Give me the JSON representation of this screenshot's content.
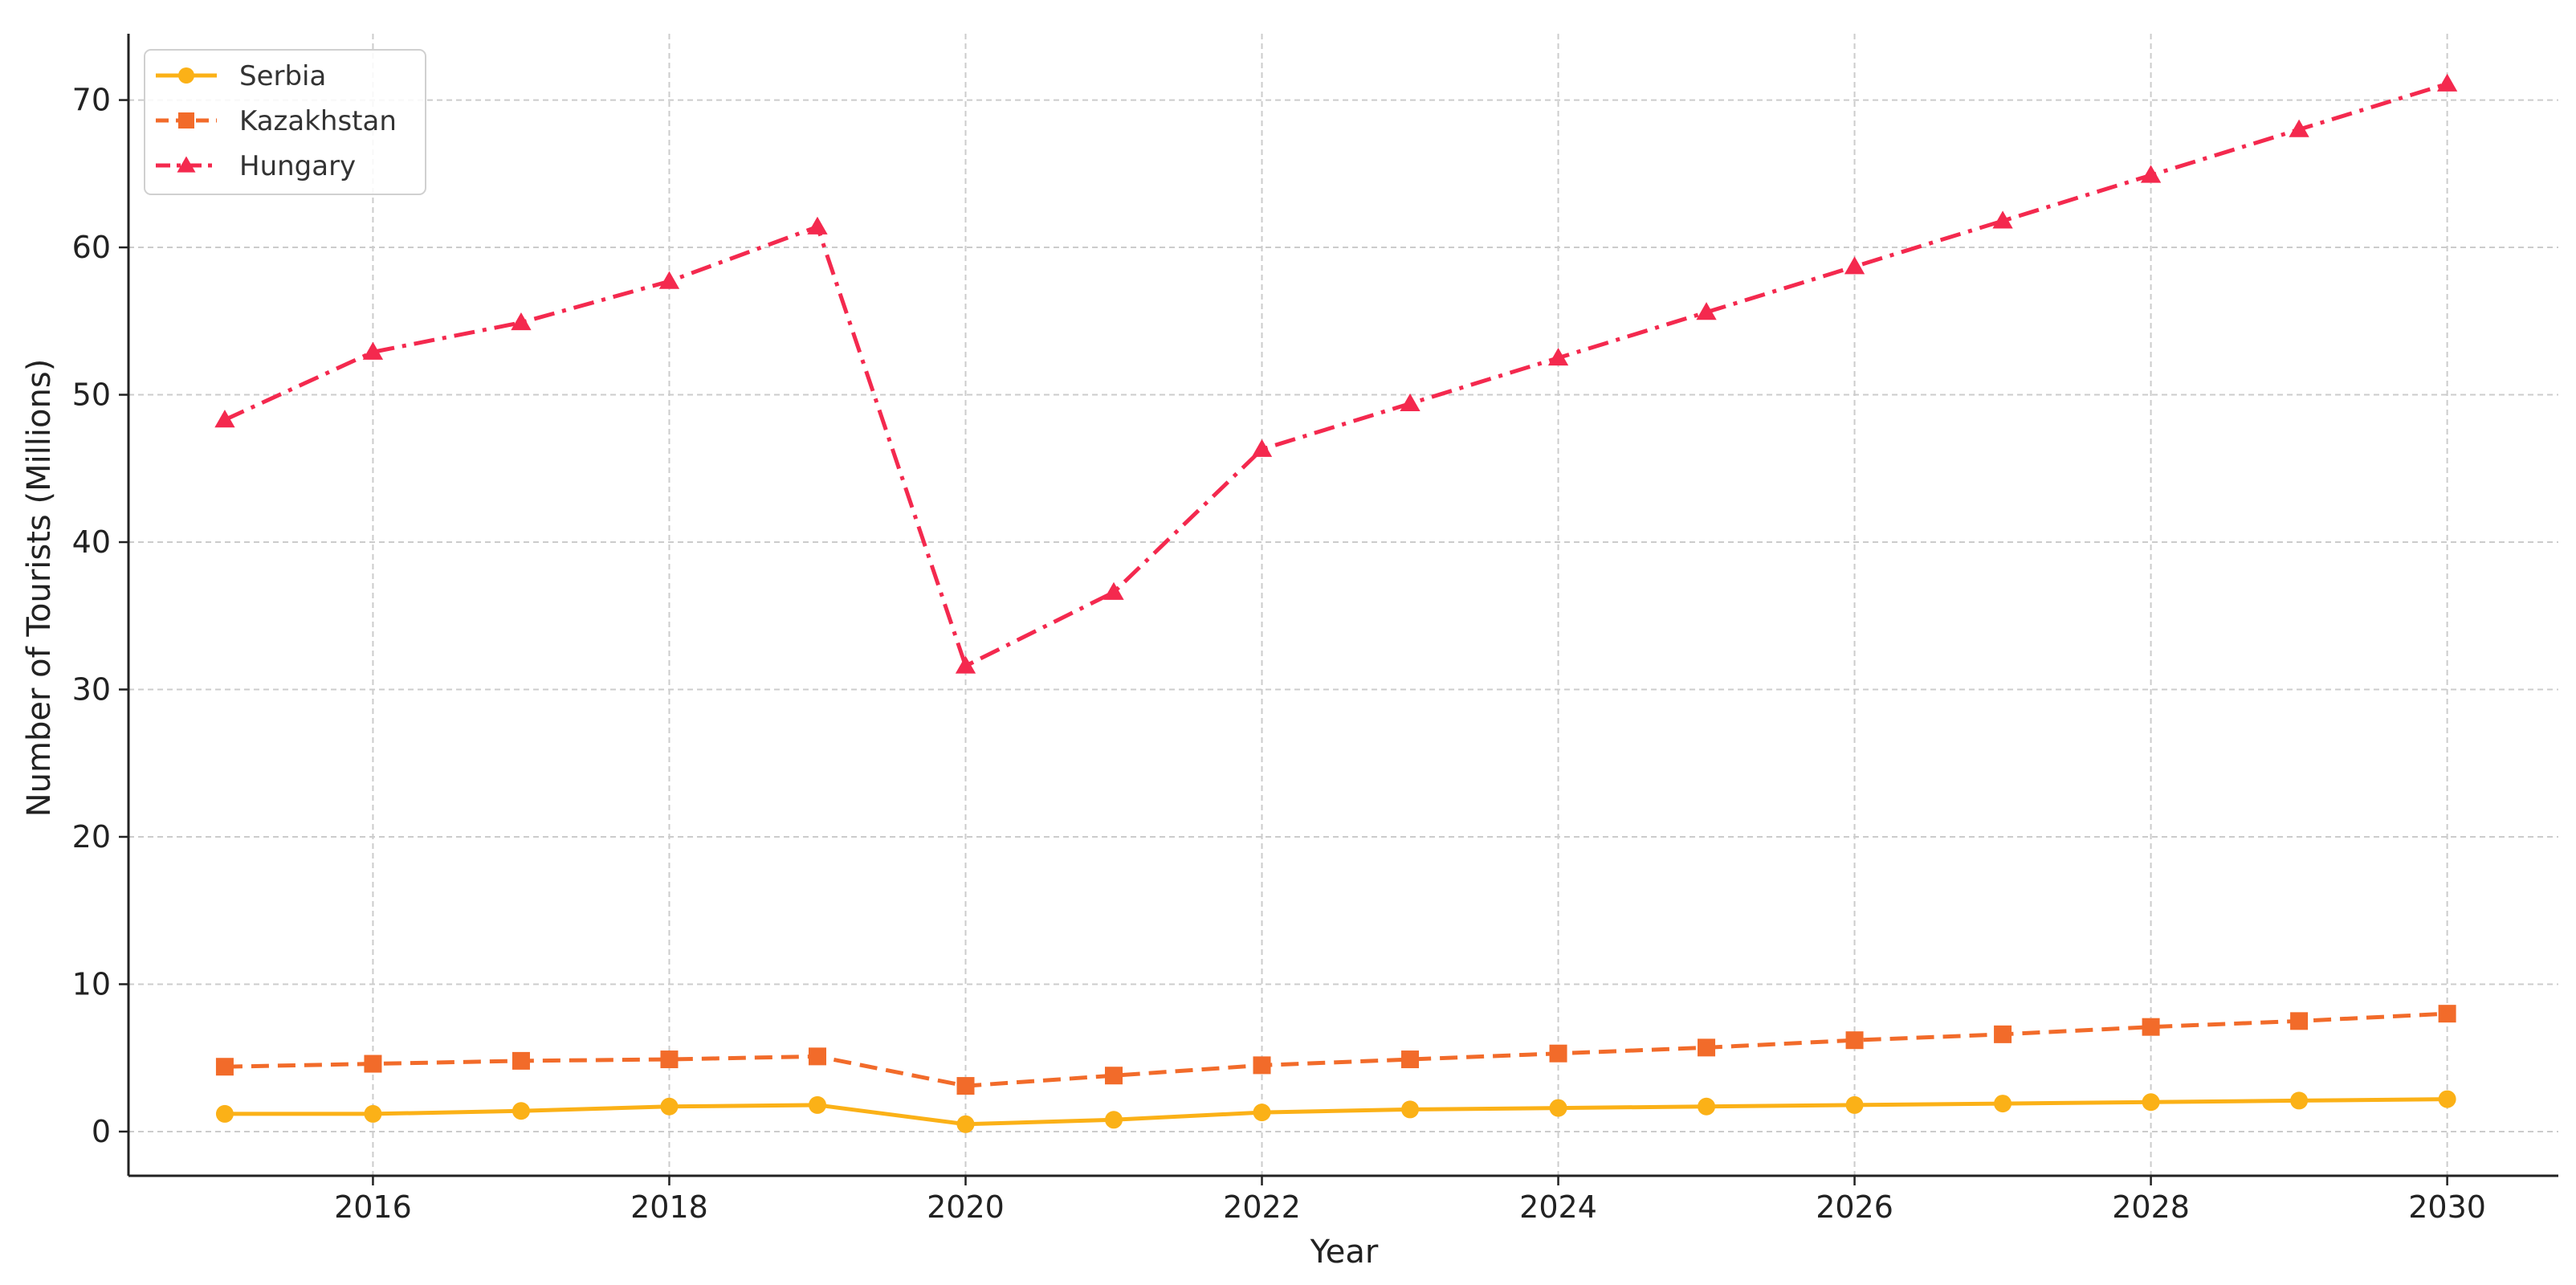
{
  "chart_data": {
    "type": "line",
    "title": "",
    "xlabel": "Year",
    "ylabel": "Number of Tourists (Millions)",
    "xlim": [
      2014.35,
      2030.75
    ],
    "ylim": [
      -3,
      74.5
    ],
    "xticks": [
      2016,
      2018,
      2020,
      2022,
      2024,
      2026,
      2028,
      2030
    ],
    "yticks": [
      0,
      10,
      20,
      30,
      40,
      50,
      60,
      70
    ],
    "grid": true,
    "legend_position": "top-left",
    "x": [
      2015,
      2016,
      2017,
      2018,
      2019,
      2020,
      2021,
      2022,
      2023,
      2024,
      2025,
      2026,
      2027,
      2028,
      2029,
      2030
    ],
    "series": [
      {
        "name": "Serbia",
        "color": "#FBB117",
        "marker": "circle",
        "line_style": "solid",
        "values": [
          1.2,
          1.2,
          1.4,
          1.7,
          1.8,
          0.5,
          0.8,
          1.3,
          1.5,
          1.6,
          1.7,
          1.8,
          1.9,
          2.0,
          2.1,
          2.2
        ]
      },
      {
        "name": "Kazakhstan",
        "color": "#F26B2A",
        "marker": "square",
        "line_style": "dashed",
        "values": [
          4.4,
          4.6,
          4.8,
          4.9,
          5.1,
          3.1,
          3.8,
          4.5,
          4.9,
          5.3,
          5.7,
          6.2,
          6.6,
          7.1,
          7.5,
          8.0
        ]
      },
      {
        "name": "Hungary",
        "color": "#F4294E",
        "marker": "triangle",
        "line_style": "dashdot",
        "values": [
          48.3,
          52.9,
          54.9,
          57.7,
          61.4,
          31.6,
          36.6,
          46.3,
          49.4,
          52.5,
          55.6,
          58.7,
          61.8,
          64.9,
          68.0,
          71.1
        ]
      }
    ]
  }
}
